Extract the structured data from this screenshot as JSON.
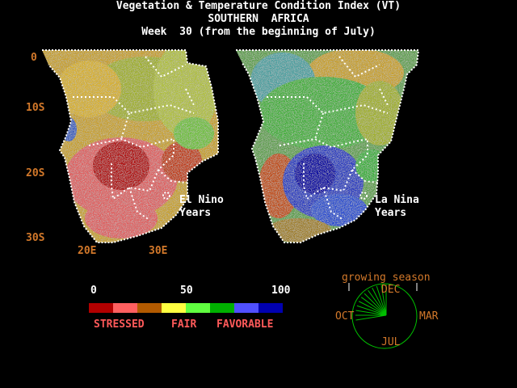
{
  "title": {
    "line1": "Vegetation & Temperature Condition Index (VT)",
    "line2": "SOUTHERN  AFRICA",
    "line3": "Week  30 (from the beginning of July)"
  },
  "lat_labels": [
    "0",
    "10S",
    "20S",
    "30S"
  ],
  "lon_labels": [
    "20E",
    "30E"
  ],
  "maps": [
    {
      "name": "El Nino",
      "sub": "Years"
    },
    {
      "name": "La Nina",
      "sub": "Years"
    }
  ],
  "scale": {
    "min": "0",
    "mid": "50",
    "max": "100",
    "colors": [
      "#b20000",
      "#ff6060",
      "#b25a00",
      "#ffff40",
      "#60ff40",
      "#00b000",
      "#5050ff",
      "#0000b0"
    ],
    "words": [
      "STRESSED",
      "FAIR",
      "FAVORABLE"
    ]
  },
  "season": {
    "title": "growing season",
    "months": {
      "top": "DEC",
      "left": "OCT",
      "right": "MAR",
      "bottom": "JUL"
    },
    "weeks_marked": 12
  }
}
